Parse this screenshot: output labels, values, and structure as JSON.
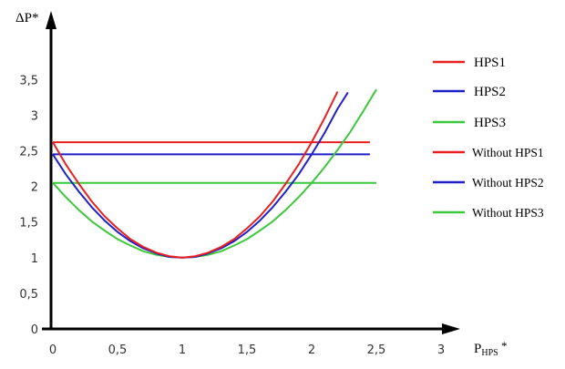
{
  "chart_data": {
    "type": "line",
    "title": "",
    "xlabel": "P",
    "xlabel_sub": "HPS",
    "xlabel_suffix": " *",
    "ylabel": "ΔP*",
    "xlim": [
      0,
      3
    ],
    "ylim": [
      0,
      3.5
    ],
    "x_ticks": [
      "0",
      "0,5",
      "1",
      "1,5",
      "2",
      "2,5",
      "3"
    ],
    "x_tick_values": [
      0,
      0.5,
      1,
      1.5,
      2,
      2.5,
      3
    ],
    "y_ticks": [
      "0",
      "0,5",
      "1",
      "1,5",
      "2",
      "2,5",
      "3",
      "3,5"
    ],
    "y_tick_values": [
      0,
      0.5,
      1,
      1.5,
      2,
      2.5,
      3,
      3.5
    ],
    "grid": false,
    "legend_position": "right",
    "series": [
      {
        "name": "HPS1",
        "color": "#e82020",
        "x": [
          0,
          0.1,
          0.2,
          0.3,
          0.4,
          0.5,
          0.6,
          0.7,
          0.8,
          0.9,
          1,
          1.1,
          1.2,
          1.3,
          1.4,
          1.5,
          1.6,
          1.7,
          1.8,
          1.9,
          2,
          2.1,
          2.2
        ],
        "y": [
          2.62,
          2.31,
          2.04,
          1.79,
          1.58,
          1.41,
          1.26,
          1.15,
          1.07,
          1.02,
          1,
          1.02,
          1.07,
          1.15,
          1.26,
          1.41,
          1.58,
          1.79,
          2.04,
          2.31,
          2.62,
          2.96,
          3.33
        ]
      },
      {
        "name": "HPS2",
        "color": "#2020c8",
        "x": [
          0,
          0.1,
          0.2,
          0.3,
          0.4,
          0.5,
          0.6,
          0.7,
          0.8,
          0.9,
          1,
          1.1,
          1.2,
          1.3,
          1.4,
          1.5,
          1.6,
          1.7,
          1.8,
          1.9,
          2,
          2.1,
          2.2,
          2.28
        ],
        "y": [
          2.45,
          2.17,
          1.93,
          1.71,
          1.52,
          1.36,
          1.23,
          1.13,
          1.06,
          1.01,
          1,
          1.01,
          1.06,
          1.13,
          1.23,
          1.36,
          1.52,
          1.71,
          1.93,
          2.17,
          2.45,
          2.75,
          3.09,
          3.32
        ]
      },
      {
        "name": "HPS3",
        "color": "#3cc83c",
        "x": [
          0,
          0.1,
          0.2,
          0.3,
          0.4,
          0.5,
          0.6,
          0.7,
          0.8,
          0.9,
          1,
          1.1,
          1.2,
          1.3,
          1.4,
          1.5,
          1.6,
          1.7,
          1.8,
          1.9,
          2,
          2.1,
          2.2,
          2.3,
          2.4,
          2.5
        ],
        "y": [
          2.05,
          1.85,
          1.67,
          1.51,
          1.38,
          1.26,
          1.17,
          1.09,
          1.04,
          1.01,
          1,
          1.01,
          1.04,
          1.09,
          1.17,
          1.26,
          1.38,
          1.51,
          1.67,
          1.85,
          2.05,
          2.27,
          2.51,
          2.77,
          3.06,
          3.36
        ]
      },
      {
        "name": "Without HPS1",
        "color": "#e82020",
        "x": [
          0,
          2.45
        ],
        "y": [
          2.62,
          2.62
        ]
      },
      {
        "name": "Without HPS2",
        "color": "#2020c8",
        "x": [
          0,
          2.45
        ],
        "y": [
          2.45,
          2.45
        ]
      },
      {
        "name": "Without HPS3",
        "color": "#3cc83c",
        "x": [
          0,
          2.5
        ],
        "y": [
          2.05,
          2.05
        ]
      }
    ]
  }
}
